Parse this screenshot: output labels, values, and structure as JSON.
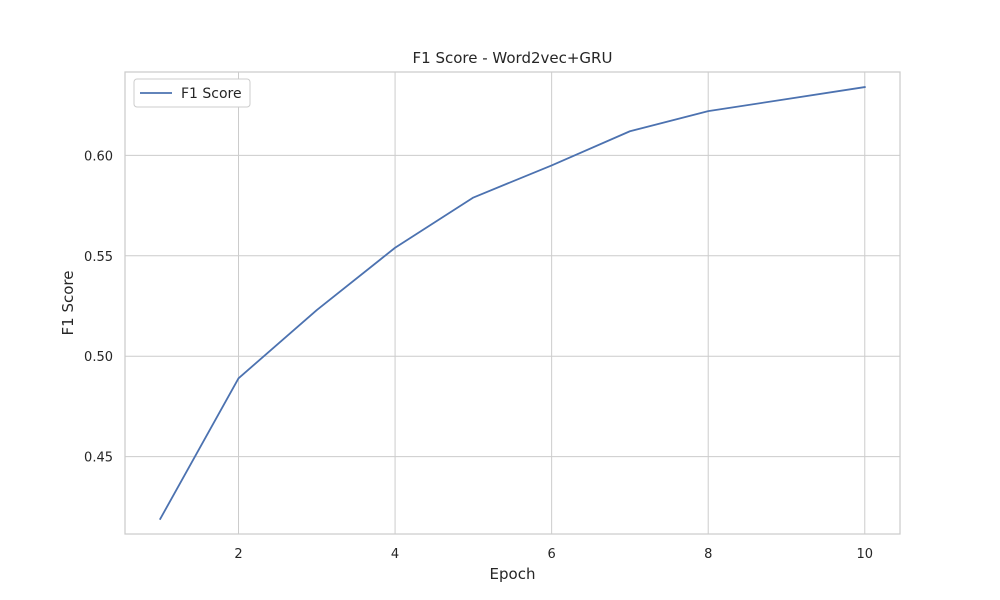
{
  "chart_data": {
    "type": "line",
    "title": "F1 Score - Word2vec+GRU",
    "xlabel": "Epoch",
    "ylabel": "F1 Score",
    "x": [
      1,
      2,
      3,
      4,
      5,
      6,
      7,
      8,
      9,
      10
    ],
    "series": [
      {
        "name": "F1 Score",
        "color": "#4c72b0",
        "values": [
          0.419,
          0.489,
          0.523,
          0.554,
          0.579,
          0.595,
          0.612,
          0.622,
          0.628,
          0.634
        ]
      }
    ],
    "xlim": [
      0.55,
      10.45
    ],
    "ylim": [
      0.4115,
      0.6415
    ],
    "xticks": [
      2,
      4,
      6,
      8,
      10
    ],
    "xtick_labels": [
      "2",
      "4",
      "6",
      "8",
      "10"
    ],
    "yticks": [
      0.45,
      0.5,
      0.55,
      0.6
    ],
    "ytick_labels": [
      "0.45",
      "0.50",
      "0.55",
      "0.60"
    ],
    "grid": true,
    "legend_position": "top-left"
  }
}
